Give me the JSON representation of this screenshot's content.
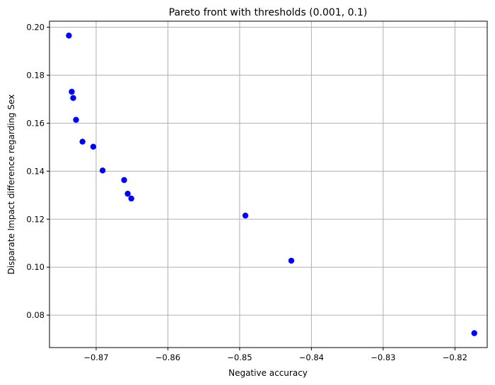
{
  "chart_data": {
    "type": "scatter",
    "title": "Pareto front with thresholds (0.001, 0.1)",
    "xlabel": "Negative accuracy",
    "ylabel": "Disparate Impact difference regarding Sex",
    "xlim": [
      -0.8765,
      -0.8155
    ],
    "ylim": [
      0.0665,
      0.2025
    ],
    "xticks": [
      -0.87,
      -0.86,
      -0.85,
      -0.84,
      -0.83,
      -0.82
    ],
    "xtick_labels": [
      "−0.87",
      "−0.86",
      "−0.85",
      "−0.84",
      "−0.83",
      "−0.82"
    ],
    "yticks": [
      0.08,
      0.1,
      0.12,
      0.14,
      0.16,
      0.18,
      0.2
    ],
    "ytick_labels": [
      "0.08",
      "0.10",
      "0.12",
      "0.14",
      "0.16",
      "0.18",
      "0.20"
    ],
    "grid": true,
    "marker_color": "#0000ff",
    "series": [
      {
        "points": [
          {
            "x": -0.8738,
            "y": 0.1965
          },
          {
            "x": -0.8734,
            "y": 0.1731
          },
          {
            "x": -0.8732,
            "y": 0.1705
          },
          {
            "x": -0.8728,
            "y": 0.1614
          },
          {
            "x": -0.8719,
            "y": 0.1523
          },
          {
            "x": -0.8704,
            "y": 0.1502
          },
          {
            "x": -0.8691,
            "y": 0.1403
          },
          {
            "x": -0.8661,
            "y": 0.1363
          },
          {
            "x": -0.8656,
            "y": 0.1306
          },
          {
            "x": -0.8651,
            "y": 0.1286
          },
          {
            "x": -0.8492,
            "y": 0.1215
          },
          {
            "x": -0.8428,
            "y": 0.1027
          },
          {
            "x": -0.8173,
            "y": 0.0725
          }
        ]
      }
    ]
  }
}
